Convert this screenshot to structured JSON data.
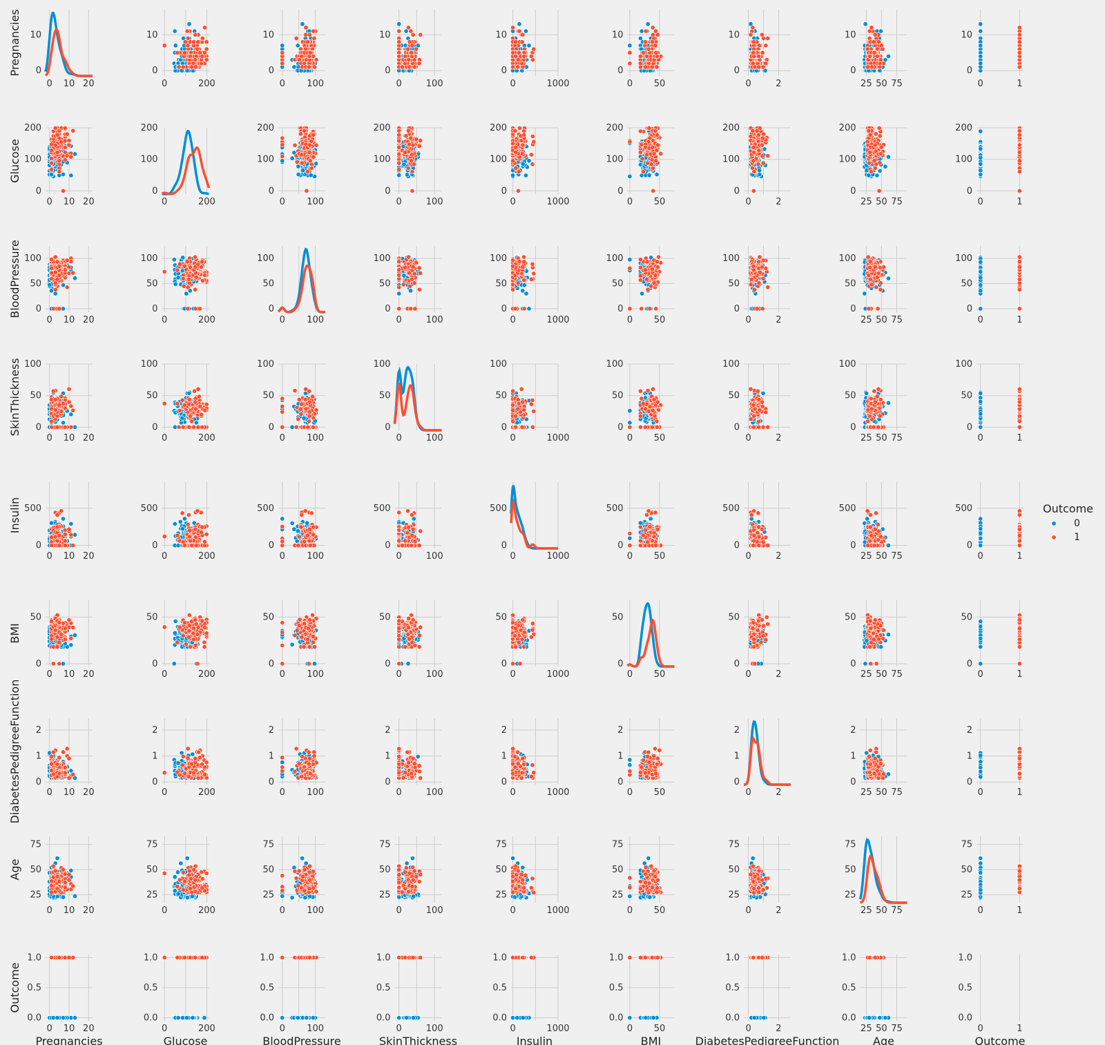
{
  "chart_data": {
    "type": "scatter",
    "subtype": "pairplot",
    "variables": [
      {
        "name": "Pregnancies",
        "xlim": [
          -2,
          22
        ],
        "xticks": [
          0,
          10,
          20
        ],
        "xtick_labels": [
          "0",
          "10",
          "20"
        ],
        "ylim": [
          -1.5,
          17
        ],
        "yticks": [
          0,
          10
        ],
        "ytick_labels": [
          "0",
          "10"
        ]
      },
      {
        "name": "Glucose",
        "xlim": [
          -12,
          210
        ],
        "xticks": [
          0,
          100,
          200
        ],
        "xtick_labels": [
          "0",
          "",
          "200"
        ],
        "ylim": [
          -10,
          200
        ],
        "yticks": [
          0,
          100,
          200
        ],
        "ytick_labels": [
          "0",
          "100",
          "200"
        ]
      },
      {
        "name": "BloodPressure",
        "xlim": [
          -12,
          130
        ],
        "xticks": [
          0,
          50,
          100
        ],
        "xtick_labels": [
          "0",
          "",
          "100"
        ],
        "ylim": [
          -7,
          125
        ],
        "yticks": [
          0,
          50,
          100
        ],
        "ytick_labels": [
          "0",
          "50",
          "100"
        ]
      },
      {
        "name": "SkinThickness",
        "xlim": [
          -12,
          120
        ],
        "xticks": [
          0,
          50,
          100
        ],
        "xtick_labels": [
          "0",
          "",
          "100"
        ],
        "ylim": [
          -5,
          100
        ],
        "yticks": [
          0,
          50,
          100
        ],
        "ytick_labels": [
          "0",
          "50",
          "100"
        ]
      },
      {
        "name": "Insulin",
        "xlim": [
          -40,
          1000
        ],
        "xticks": [
          0,
          500,
          1000
        ],
        "xtick_labels": [
          "0",
          "",
          "1000"
        ],
        "ylim": [
          -40,
          850
        ],
        "yticks": [
          0,
          500
        ],
        "ytick_labels": [
          "0",
          "500"
        ]
      },
      {
        "name": "BMI",
        "xlim": [
          -4,
          75
        ],
        "xticks": [
          0,
          50
        ],
        "xtick_labels": [
          "0",
          "50"
        ],
        "ylim": [
          -3,
          68
        ],
        "yticks": [
          0,
          50
        ],
        "ytick_labels": [
          "0",
          "50"
        ]
      },
      {
        "name": "DiabetesPedigreeFunction",
        "xlim": [
          -0.3,
          2.8
        ],
        "xticks": [
          0,
          1,
          2
        ],
        "xtick_labels": [
          "0",
          "",
          "2"
        ],
        "ylim": [
          -0.1,
          2.45
        ],
        "yticks": [
          0,
          1,
          2
        ],
        "ytick_labels": [
          "0",
          "1",
          "2"
        ]
      },
      {
        "name": "Age",
        "xlim": [
          15,
          92
        ],
        "xticks": [
          25,
          50,
          75
        ],
        "xtick_labels": [
          "25",
          "50",
          "75"
        ],
        "ylim": [
          17,
          83
        ],
        "yticks": [
          25,
          50,
          75
        ],
        "ytick_labels": [
          "25",
          "50",
          "75"
        ]
      },
      {
        "name": "Outcome",
        "xlim": [
          -0.1,
          1.1
        ],
        "xticks": [
          0,
          1
        ],
        "xtick_labels": [
          "0",
          "1"
        ],
        "ylim": [
          -0.05,
          1.05
        ],
        "yticks": [
          0,
          0.5,
          1
        ],
        "ytick_labels": [
          "0.0",
          "0.5",
          "1.0"
        ]
      }
    ],
    "hue": {
      "name": "Outcome",
      "levels": [
        "0",
        "1"
      ],
      "colors": [
        "#008fd5",
        "#fc4f30"
      ]
    },
    "diagonal": "kde",
    "off_diagonal": "scatter",
    "style": "fivethirtyeight",
    "grid": true,
    "legend": {
      "title": "Outcome",
      "placement": "right",
      "entries": [
        "0",
        "1"
      ]
    }
  }
}
